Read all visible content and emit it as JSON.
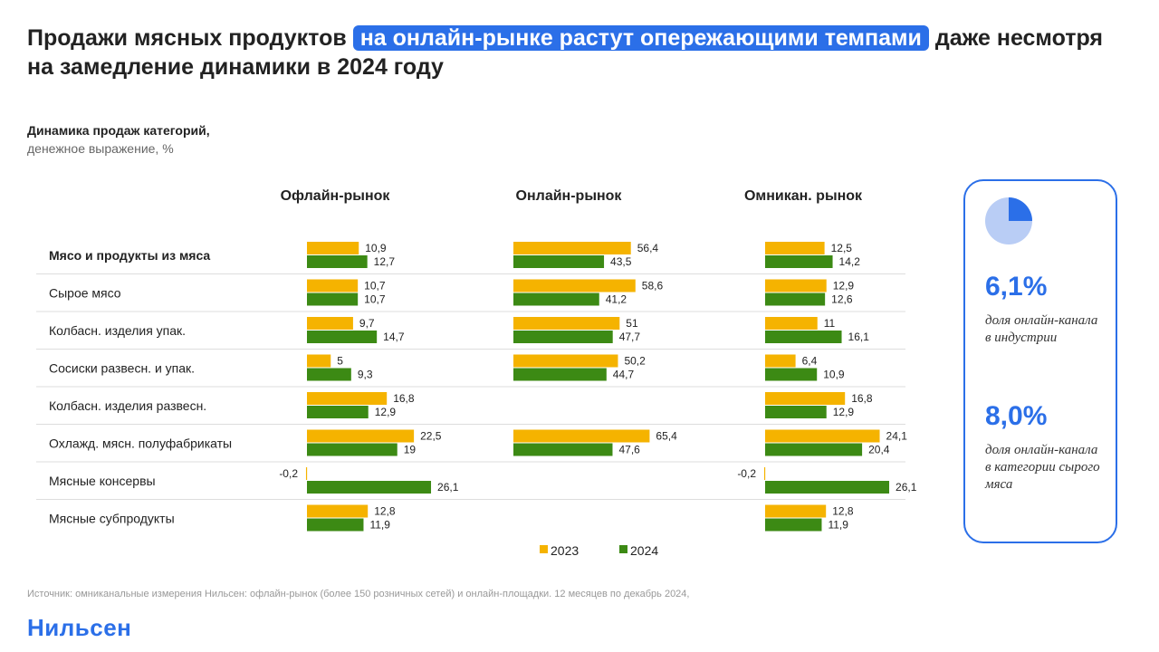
{
  "header": {
    "title_part1": "Продажи мясных продуктов ",
    "title_highlight": "на онлайн-рынке растут опережающими темпами",
    "title_part2": " даже несмотря на замедление динамики в 2024 году",
    "subtitle_bold": "Динамика продаж категорий,",
    "subtitle_light": "денежное выражение, %"
  },
  "chart_data": {
    "type": "bar",
    "orientation": "horizontal",
    "categories": [
      "Мясо и продукты из мяса",
      "Сырое мясо",
      "Колбасн. изделия упак.",
      "Сосиски развесн. и упак.",
      "Колбасн. изделия развесн.",
      "Охлажд. мясн. полуфабрикаты",
      "Мясные консервы",
      "Мясные субпродукты"
    ],
    "panels": [
      {
        "title": "Офлайн-рынок",
        "series": [
          {
            "name": "2023",
            "values": [
              10.9,
              10.7,
              9.7,
              5,
              16.8,
              22.5,
              -0.2,
              12.8
            ],
            "labels": [
              "10,9",
              "10,7",
              "9,7",
              "5",
              "16,8",
              "22,5",
              "-0,2",
              "12,8"
            ]
          },
          {
            "name": "2024",
            "values": [
              12.7,
              10.7,
              14.7,
              9.3,
              12.9,
              19,
              26.1,
              11.9
            ],
            "labels": [
              "12,7",
              "10,7",
              "14,7",
              "9,3",
              "12,9",
              "19",
              "26,1",
              "11,9"
            ]
          }
        ]
      },
      {
        "title": "Онлайн-рынок",
        "series": [
          {
            "name": "2023",
            "values": [
              56.4,
              58.6,
              51,
              50.2,
              null,
              65.4,
              null,
              null
            ],
            "labels": [
              "56,4",
              "58,6",
              "51",
              "50,2",
              null,
              "65,4",
              null,
              null
            ]
          },
          {
            "name": "2024",
            "values": [
              43.5,
              41.2,
              47.7,
              44.7,
              null,
              47.6,
              null,
              null
            ],
            "labels": [
              "43,5",
              "41,2",
              "47,7",
              "44,7",
              null,
              "47,6",
              null,
              null
            ]
          }
        ]
      },
      {
        "title": "Омникан. рынок",
        "series": [
          {
            "name": "2023",
            "values": [
              12.5,
              12.9,
              11,
              6.4,
              16.8,
              24.1,
              -0.2,
              12.8
            ],
            "labels": [
              "12,5",
              "12,9",
              "11",
              "6,4",
              "16,8",
              "24,1",
              "-0,2",
              "12,8"
            ]
          },
          {
            "name": "2024",
            "values": [
              14.2,
              12.6,
              16.1,
              10.9,
              12.9,
              20.4,
              26.1,
              11.9
            ],
            "labels": [
              "14,2",
              "12,6",
              "16,1",
              "10,9",
              "12,9",
              "20,4",
              "26,1",
              "11,9"
            ]
          }
        ]
      }
    ],
    "legend": [
      {
        "name": "2023",
        "color": "#f5b300"
      },
      {
        "name": "2024",
        "color": "#3c8a14"
      }
    ],
    "legend_position": "bottom"
  },
  "side_panel": {
    "pie_share_percent": 25,
    "stat1_value": "6,1%",
    "stat1_desc": "доля онлайн-канала в индустрии",
    "stat2_value": "8,0%",
    "stat2_desc": "доля онлайн-канала в категории сырого мяса",
    "accent_color": "#2b6fe8"
  },
  "footer": {
    "source": "Источник: омниканальные измерения Нильсен: офлайн-рынок (более 150 розничных сетей) и онлайн-площадки. 12 месяцев по декабрь 2024,",
    "logo": "Нильсен"
  }
}
